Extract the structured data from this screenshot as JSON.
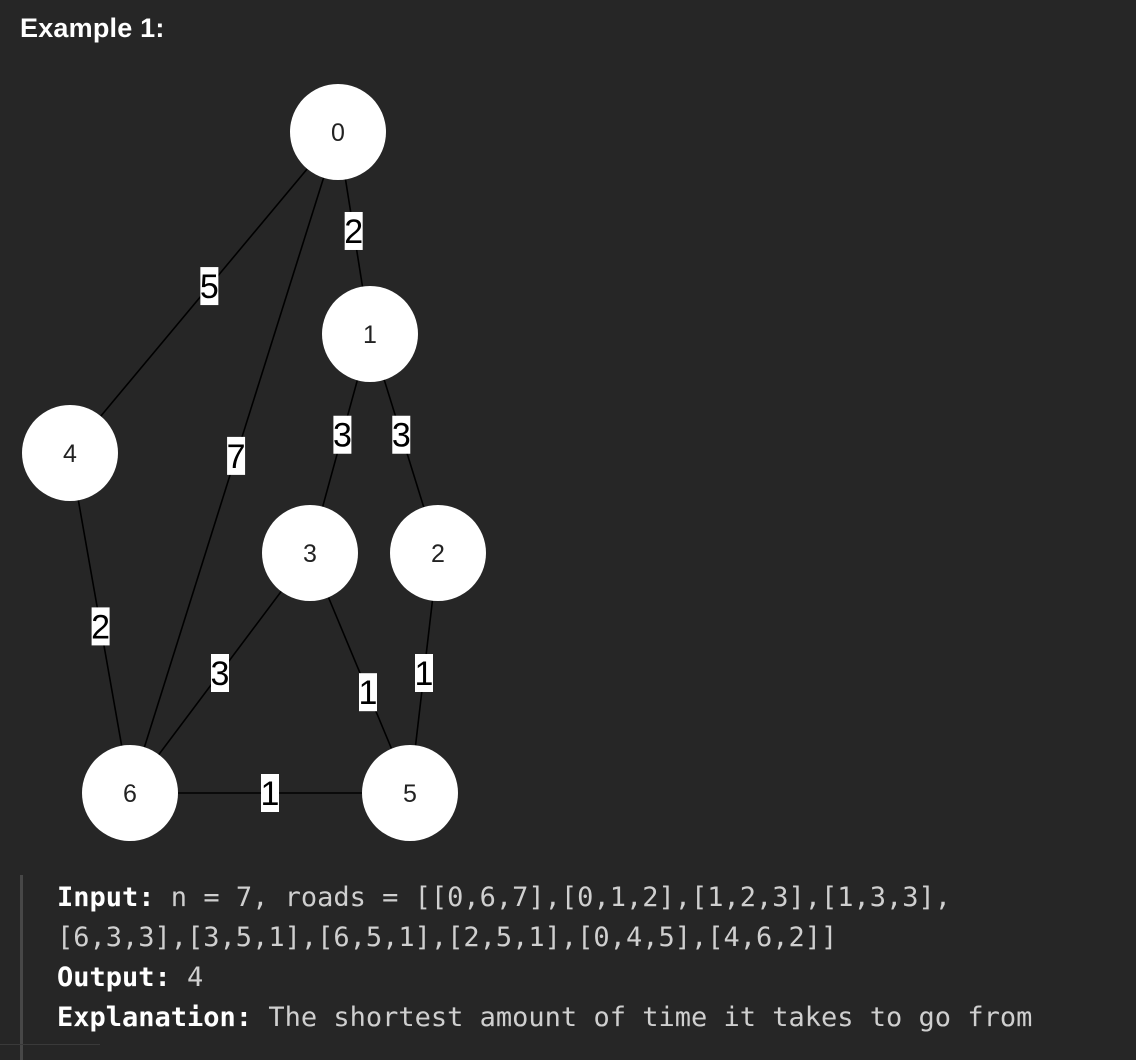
{
  "heading": "Example 1:",
  "graph": {
    "nodes": [
      {
        "id": "0",
        "label": "0"
      },
      {
        "id": "1",
        "label": "1"
      },
      {
        "id": "2",
        "label": "2"
      },
      {
        "id": "3",
        "label": "3"
      },
      {
        "id": "4",
        "label": "4"
      },
      {
        "id": "5",
        "label": "5"
      },
      {
        "id": "6",
        "label": "6"
      }
    ],
    "edges": [
      {
        "from": "0",
        "to": "4",
        "weight": "5"
      },
      {
        "from": "0",
        "to": "6",
        "weight": "7"
      },
      {
        "from": "0",
        "to": "1",
        "weight": "2"
      },
      {
        "from": "1",
        "to": "3",
        "weight": "3"
      },
      {
        "from": "1",
        "to": "2",
        "weight": "3"
      },
      {
        "from": "4",
        "to": "6",
        "weight": "2"
      },
      {
        "from": "3",
        "to": "6",
        "weight": "3"
      },
      {
        "from": "3",
        "to": "5",
        "weight": "1"
      },
      {
        "from": "2",
        "to": "5",
        "weight": "1"
      },
      {
        "from": "6",
        "to": "5",
        "weight": "1"
      }
    ]
  },
  "example": {
    "input_label": "Input:",
    "input_line1": " n = 7, roads = [[0,6,7],[0,1,2],[1,2,3],[1,3,3],",
    "input_line2": "[6,3,3],[3,5,1],[6,5,1],[2,5,1],[0,4,5],[4,6,2]]",
    "output_label": "Output:",
    "output_value": " 4",
    "explanation_label": "Explanation:",
    "explanation_text": " The shortest amount of time it takes to go from"
  },
  "colors": {
    "background": "#262626",
    "node_fill": "#ffffff",
    "edge": "#000000",
    "text": "#ffffff"
  }
}
